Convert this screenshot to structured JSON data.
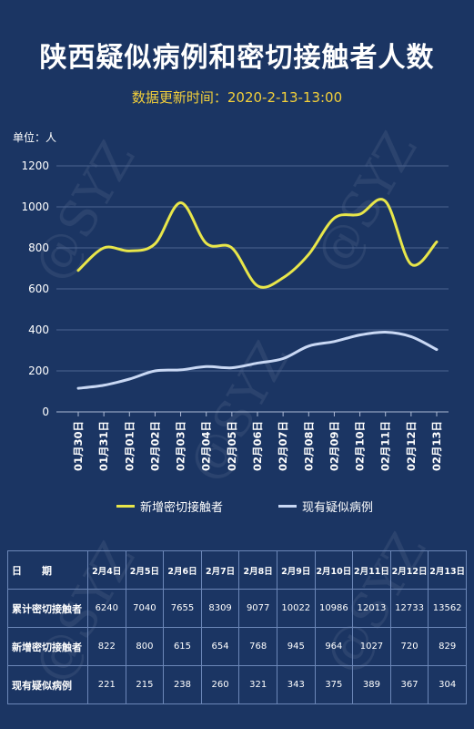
{
  "title": "陕西疑似病例和密切接触者人数",
  "subtitle": "数据更新时间：2020-2-13-13:00",
  "unit_label": "单位：人",
  "watermark": "@SYZ",
  "colors": {
    "background": "#1b3563",
    "contacts": "#e8e64a",
    "suspected": "#c9d8f4",
    "subtitle": "#f2cf3a"
  },
  "chart_data": {
    "type": "line",
    "categories": [
      "01月30日",
      "01月31日",
      "02月01日",
      "02月02日",
      "02月03日",
      "02月04日",
      "02月05日",
      "02月06日",
      "02月07日",
      "02月08日",
      "02月09日",
      "02月10日",
      "02月11日",
      "02月12日",
      "02月13日"
    ],
    "series": [
      {
        "name": "新增密切接触者",
        "values": [
          690,
          800,
          785,
          820,
          1020,
          822,
          800,
          615,
          654,
          768,
          945,
          964,
          1027,
          720,
          829
        ]
      },
      {
        "name": "现有疑似病例",
        "values": [
          115,
          130,
          160,
          200,
          205,
          221,
          215,
          238,
          260,
          321,
          343,
          375,
          389,
          367,
          304
        ]
      }
    ],
    "yticks": [
      "0",
      "200",
      "400",
      "600",
      "800",
      "1000",
      "1200"
    ],
    "ylim": [
      0,
      1200
    ],
    "grid": true,
    "legend": "bottom"
  },
  "table": {
    "header_label": "日　　期",
    "dates": [
      "2月4日",
      "2月5日",
      "2月6日",
      "2月7日",
      "2月8日",
      "2月9日",
      "2月10日",
      "2月11日",
      "2月12日",
      "2月13日"
    ],
    "rows": [
      {
        "label": "累计密切接触者",
        "values": [
          "6240",
          "7040",
          "7655",
          "8309",
          "9077",
          "10022",
          "10986",
          "12013",
          "12733",
          "13562"
        ]
      },
      {
        "label": "新增密切接触者",
        "values": [
          "822",
          "800",
          "615",
          "654",
          "768",
          "945",
          "964",
          "1027",
          "720",
          "829"
        ]
      },
      {
        "label": "现有疑似病例",
        "values": [
          "221",
          "215",
          "238",
          "260",
          "321",
          "343",
          "375",
          "389",
          "367",
          "304"
        ]
      }
    ]
  }
}
